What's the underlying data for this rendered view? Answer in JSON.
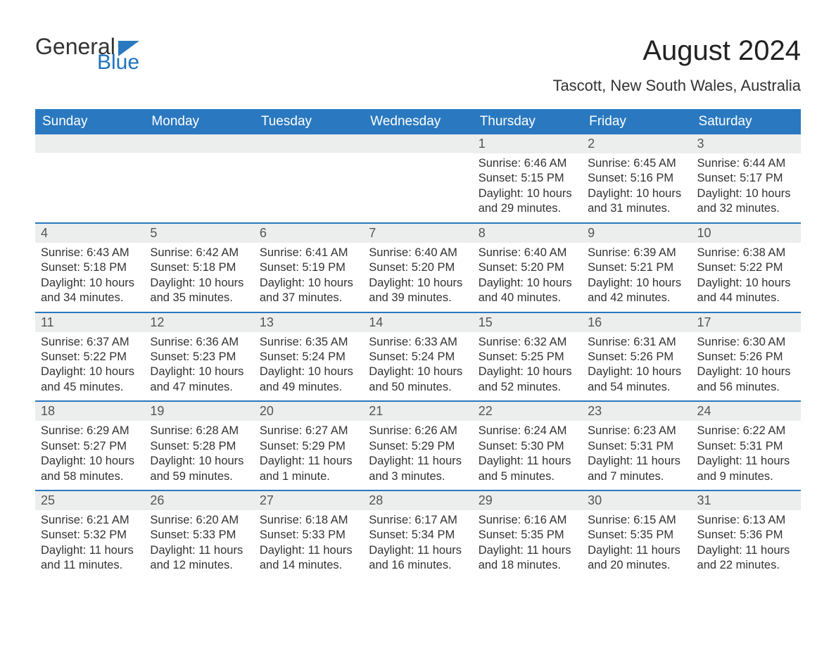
{
  "logo": {
    "general": "General",
    "blue": "Blue",
    "tri_color": "#2a79c0"
  },
  "title": "August 2024",
  "location": "Tascott, New South Wales, Australia",
  "colors": {
    "header_bg": "#2a79c0",
    "header_text": "#ffffff",
    "daynum_bg": "#eceded",
    "body_text": "#333333",
    "week_border": "#2a79c0"
  },
  "typography": {
    "title_fontsize": 40,
    "location_fontsize": 22,
    "dayheader_fontsize": 19,
    "daynum_fontsize": 18,
    "body_fontsize": 16.5,
    "font_family": "Arial"
  },
  "day_names": [
    "Sunday",
    "Monday",
    "Tuesday",
    "Wednesday",
    "Thursday",
    "Friday",
    "Saturday"
  ],
  "weeks": [
    [
      {
        "day": "",
        "sunrise": "",
        "sunset": "",
        "daylight": ""
      },
      {
        "day": "",
        "sunrise": "",
        "sunset": "",
        "daylight": ""
      },
      {
        "day": "",
        "sunrise": "",
        "sunset": "",
        "daylight": ""
      },
      {
        "day": "",
        "sunrise": "",
        "sunset": "",
        "daylight": ""
      },
      {
        "day": "1",
        "sunrise": "Sunrise: 6:46 AM",
        "sunset": "Sunset: 5:15 PM",
        "daylight": "Daylight: 10 hours and 29 minutes."
      },
      {
        "day": "2",
        "sunrise": "Sunrise: 6:45 AM",
        "sunset": "Sunset: 5:16 PM",
        "daylight": "Daylight: 10 hours and 31 minutes."
      },
      {
        "day": "3",
        "sunrise": "Sunrise: 6:44 AM",
        "sunset": "Sunset: 5:17 PM",
        "daylight": "Daylight: 10 hours and 32 minutes."
      }
    ],
    [
      {
        "day": "4",
        "sunrise": "Sunrise: 6:43 AM",
        "sunset": "Sunset: 5:18 PM",
        "daylight": "Daylight: 10 hours and 34 minutes."
      },
      {
        "day": "5",
        "sunrise": "Sunrise: 6:42 AM",
        "sunset": "Sunset: 5:18 PM",
        "daylight": "Daylight: 10 hours and 35 minutes."
      },
      {
        "day": "6",
        "sunrise": "Sunrise: 6:41 AM",
        "sunset": "Sunset: 5:19 PM",
        "daylight": "Daylight: 10 hours and 37 minutes."
      },
      {
        "day": "7",
        "sunrise": "Sunrise: 6:40 AM",
        "sunset": "Sunset: 5:20 PM",
        "daylight": "Daylight: 10 hours and 39 minutes."
      },
      {
        "day": "8",
        "sunrise": "Sunrise: 6:40 AM",
        "sunset": "Sunset: 5:20 PM",
        "daylight": "Daylight: 10 hours and 40 minutes."
      },
      {
        "day": "9",
        "sunrise": "Sunrise: 6:39 AM",
        "sunset": "Sunset: 5:21 PM",
        "daylight": "Daylight: 10 hours and 42 minutes."
      },
      {
        "day": "10",
        "sunrise": "Sunrise: 6:38 AM",
        "sunset": "Sunset: 5:22 PM",
        "daylight": "Daylight: 10 hours and 44 minutes."
      }
    ],
    [
      {
        "day": "11",
        "sunrise": "Sunrise: 6:37 AM",
        "sunset": "Sunset: 5:22 PM",
        "daylight": "Daylight: 10 hours and 45 minutes."
      },
      {
        "day": "12",
        "sunrise": "Sunrise: 6:36 AM",
        "sunset": "Sunset: 5:23 PM",
        "daylight": "Daylight: 10 hours and 47 minutes."
      },
      {
        "day": "13",
        "sunrise": "Sunrise: 6:35 AM",
        "sunset": "Sunset: 5:24 PM",
        "daylight": "Daylight: 10 hours and 49 minutes."
      },
      {
        "day": "14",
        "sunrise": "Sunrise: 6:33 AM",
        "sunset": "Sunset: 5:24 PM",
        "daylight": "Daylight: 10 hours and 50 minutes."
      },
      {
        "day": "15",
        "sunrise": "Sunrise: 6:32 AM",
        "sunset": "Sunset: 5:25 PM",
        "daylight": "Daylight: 10 hours and 52 minutes."
      },
      {
        "day": "16",
        "sunrise": "Sunrise: 6:31 AM",
        "sunset": "Sunset: 5:26 PM",
        "daylight": "Daylight: 10 hours and 54 minutes."
      },
      {
        "day": "17",
        "sunrise": "Sunrise: 6:30 AM",
        "sunset": "Sunset: 5:26 PM",
        "daylight": "Daylight: 10 hours and 56 minutes."
      }
    ],
    [
      {
        "day": "18",
        "sunrise": "Sunrise: 6:29 AM",
        "sunset": "Sunset: 5:27 PM",
        "daylight": "Daylight: 10 hours and 58 minutes."
      },
      {
        "day": "19",
        "sunrise": "Sunrise: 6:28 AM",
        "sunset": "Sunset: 5:28 PM",
        "daylight": "Daylight: 10 hours and 59 minutes."
      },
      {
        "day": "20",
        "sunrise": "Sunrise: 6:27 AM",
        "sunset": "Sunset: 5:29 PM",
        "daylight": "Daylight: 11 hours and 1 minute."
      },
      {
        "day": "21",
        "sunrise": "Sunrise: 6:26 AM",
        "sunset": "Sunset: 5:29 PM",
        "daylight": "Daylight: 11 hours and 3 minutes."
      },
      {
        "day": "22",
        "sunrise": "Sunrise: 6:24 AM",
        "sunset": "Sunset: 5:30 PM",
        "daylight": "Daylight: 11 hours and 5 minutes."
      },
      {
        "day": "23",
        "sunrise": "Sunrise: 6:23 AM",
        "sunset": "Sunset: 5:31 PM",
        "daylight": "Daylight: 11 hours and 7 minutes."
      },
      {
        "day": "24",
        "sunrise": "Sunrise: 6:22 AM",
        "sunset": "Sunset: 5:31 PM",
        "daylight": "Daylight: 11 hours and 9 minutes."
      }
    ],
    [
      {
        "day": "25",
        "sunrise": "Sunrise: 6:21 AM",
        "sunset": "Sunset: 5:32 PM",
        "daylight": "Daylight: 11 hours and 11 minutes."
      },
      {
        "day": "26",
        "sunrise": "Sunrise: 6:20 AM",
        "sunset": "Sunset: 5:33 PM",
        "daylight": "Daylight: 11 hours and 12 minutes."
      },
      {
        "day": "27",
        "sunrise": "Sunrise: 6:18 AM",
        "sunset": "Sunset: 5:33 PM",
        "daylight": "Daylight: 11 hours and 14 minutes."
      },
      {
        "day": "28",
        "sunrise": "Sunrise: 6:17 AM",
        "sunset": "Sunset: 5:34 PM",
        "daylight": "Daylight: 11 hours and 16 minutes."
      },
      {
        "day": "29",
        "sunrise": "Sunrise: 6:16 AM",
        "sunset": "Sunset: 5:35 PM",
        "daylight": "Daylight: 11 hours and 18 minutes."
      },
      {
        "day": "30",
        "sunrise": "Sunrise: 6:15 AM",
        "sunset": "Sunset: 5:35 PM",
        "daylight": "Daylight: 11 hours and 20 minutes."
      },
      {
        "day": "31",
        "sunrise": "Sunrise: 6:13 AM",
        "sunset": "Sunset: 5:36 PM",
        "daylight": "Daylight: 11 hours and 22 minutes."
      }
    ]
  ]
}
